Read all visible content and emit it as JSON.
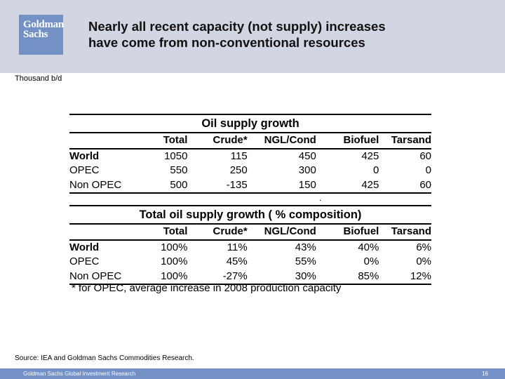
{
  "header": {
    "logo_line1": "Goldman",
    "logo_line2": "Sachs",
    "title_line1": "Nearly all recent capacity (not supply) increases",
    "title_line2": "have come from non-conventional resources"
  },
  "unit_label": "Thousand b/d",
  "table1": {
    "title": "Oil supply growth",
    "columns": [
      "Total",
      "Crude*",
      "NGL/Cond",
      "Biofuel",
      "Tarsand"
    ],
    "rows": [
      {
        "label": "World",
        "values": [
          "1050",
          "115",
          "450",
          "425",
          "60"
        ]
      },
      {
        "label": "OPEC",
        "values": [
          "550",
          "250",
          "300",
          "0",
          "0"
        ]
      },
      {
        "label": "Non OPEC",
        "values": [
          "500",
          "-135",
          "150",
          "425",
          "60"
        ]
      }
    ]
  },
  "separator_dot": ".",
  "table2": {
    "title": "Total oil supply growth ( % composition)",
    "columns": [
      "Total",
      "Crude*",
      "NGL/Cond",
      "Biofuel",
      "Tarsand"
    ],
    "rows": [
      {
        "label": "World",
        "values": [
          "100%",
          "11%",
          "43%",
          "40%",
          "6%"
        ]
      },
      {
        "label": "OPEC",
        "values": [
          "100%",
          "45%",
          "55%",
          "0%",
          "0%"
        ]
      },
      {
        "label": "Non OPEC",
        "values": [
          "100%",
          "-27%",
          "30%",
          "85%",
          "12%"
        ]
      }
    ]
  },
  "footnote": "* for OPEC, average increase in 2008 production capacity",
  "source": "Source: IEA and Goldman Sachs Commodities Research.",
  "footer": {
    "left": "Goldman Sachs Global Investment Research",
    "page_number": "16"
  }
}
